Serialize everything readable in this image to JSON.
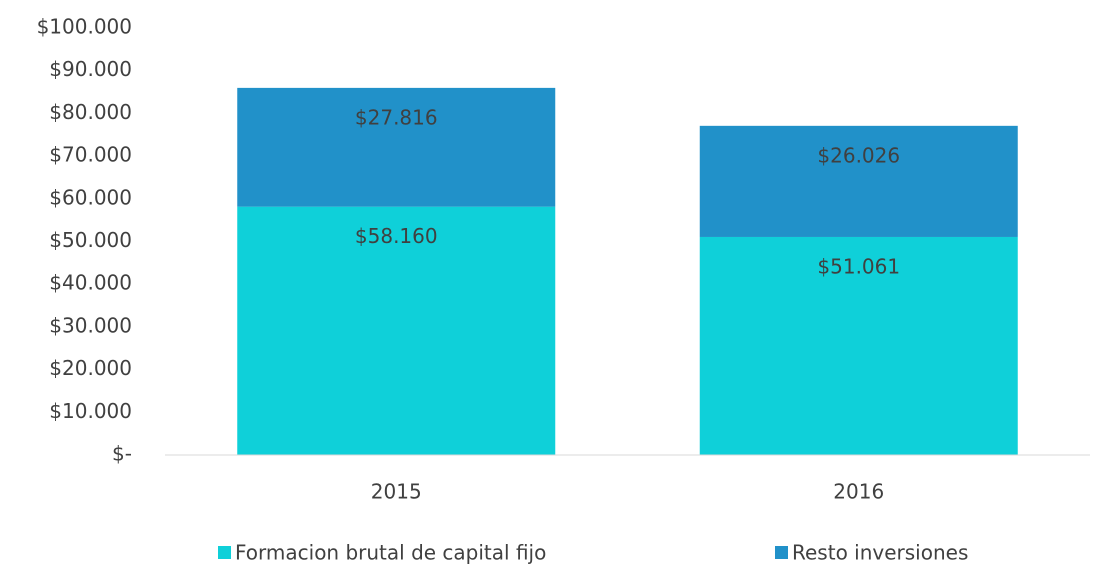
{
  "chart_data": {
    "type": "bar",
    "stacked": true,
    "categories": [
      "2015",
      "2016"
    ],
    "series": [
      {
        "name": "Formacion brutal de capital fijo",
        "color": "#0fd0d9",
        "values": [
          58160,
          51061
        ],
        "value_labels": [
          "$58.160",
          "$51.061"
        ]
      },
      {
        "name": "Resto inversiones",
        "color": "#2191c9",
        "values": [
          27816,
          26026
        ],
        "value_labels": [
          "$27.816",
          "$26.026"
        ]
      }
    ],
    "ylim": [
      0,
      100000
    ],
    "yticks": [
      {
        "value": 0,
        "label": "$-"
      },
      {
        "value": 10000,
        "label": "$10.000"
      },
      {
        "value": 20000,
        "label": "$20.000"
      },
      {
        "value": 30000,
        "label": "$30.000"
      },
      {
        "value": 40000,
        "label": "$40.000"
      },
      {
        "value": 50000,
        "label": "$50.000"
      },
      {
        "value": 60000,
        "label": "$60.000"
      },
      {
        "value": 70000,
        "label": "$70.000"
      },
      {
        "value": 80000,
        "label": "$80.000"
      },
      {
        "value": 90000,
        "label": "$90.000"
      },
      {
        "value": 100000,
        "label": "$100.000"
      }
    ],
    "grid": false,
    "legend": "bottom"
  }
}
